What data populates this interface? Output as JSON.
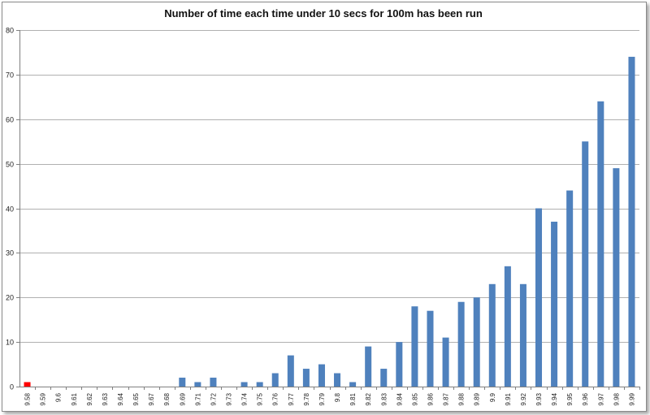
{
  "chart_data": {
    "type": "bar",
    "title": "Number of time each time under 10 secs for 100m has been run",
    "xlabel": "",
    "ylabel": "",
    "ylim": [
      0,
      80
    ],
    "yticks": [
      "0",
      "10",
      "20",
      "30",
      "40",
      "50",
      "60",
      "70",
      "80"
    ],
    "grid": true,
    "categories": [
      "9.58",
      "9.59",
      "9.6",
      "9.61",
      "9.62",
      "9.63",
      "9.64",
      "9.65",
      "9.67",
      "9.68",
      "9.69",
      "9.71",
      "9.72",
      "9.73",
      "9.74",
      "9.75",
      "9.76",
      "9.77",
      "9.78",
      "9.79",
      "9.8",
      "9.81",
      "9.82",
      "9.83",
      "9.84",
      "9.85",
      "9.86",
      "9.87",
      "9.88",
      "9.89",
      "9.9",
      "9.91",
      "9.92",
      "9.93",
      "9.94",
      "9.95",
      "9.96",
      "9.97",
      "9.98",
      "9.99"
    ],
    "values": [
      1,
      0,
      0,
      0,
      0,
      0,
      0,
      0,
      0,
      0,
      2,
      1,
      2,
      0,
      1,
      1,
      3,
      7,
      4,
      5,
      3,
      1,
      9,
      4,
      10,
      18,
      17,
      11,
      19,
      20,
      23,
      27,
      23,
      40,
      37,
      44,
      55,
      64,
      49,
      74
    ],
    "bar_color": "#4f81bd",
    "highlight_color": "#ff0000",
    "highlight_index": 0,
    "gridline_color": "#b0b0b0"
  }
}
